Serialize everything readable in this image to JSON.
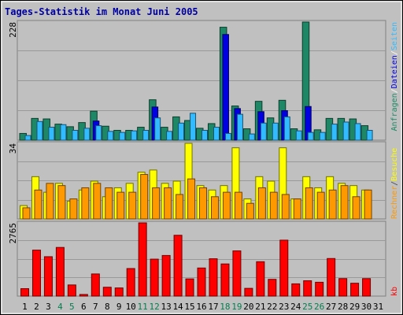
{
  "chart_data": {
    "type": "bar",
    "title": "Tages-Statistik im Monat Juni 2005",
    "categories": [
      "1",
      "2",
      "3",
      "4",
      "5",
      "6",
      "7",
      "8",
      "9",
      "10",
      "11",
      "12",
      "13",
      "14",
      "15",
      "16",
      "17",
      "18",
      "19",
      "20",
      "21",
      "22",
      "23",
      "24",
      "25",
      "26",
      "27",
      "28",
      "29",
      "30",
      "31"
    ],
    "weekend_categories": [
      "4",
      "5",
      "11",
      "12",
      "18",
      "19",
      "25",
      "26"
    ],
    "panels": [
      {
        "name": "requests",
        "ytick": "228",
        "ylim": [
          0,
          228
        ],
        "series": [
          {
            "name": "Anfragen",
            "color": "#1e8866",
            "values": [
              13,
              42,
              41,
              31,
              26,
              34,
              56,
              27,
              19,
              19,
              25,
              78,
              25,
              45,
              38,
              23,
              32,
              218,
              66,
              22,
              75,
              43,
              77,
              22,
              228,
              20,
              42,
              42,
              41,
              28,
              0
            ]
          },
          {
            "name": "Dateien",
            "color": "#0000e0",
            "values": [
              0,
              0,
              0,
              0,
              0,
              0,
              37,
              0,
              0,
              0,
              0,
              64,
              0,
              0,
              0,
              0,
              0,
              204,
              61,
              0,
              55,
              0,
              57,
              0,
              65,
              0,
              0,
              0,
              0,
              0,
              0
            ]
          },
          {
            "name": "Seiten",
            "color": "#33bbff",
            "values": [
              9,
              36,
              25,
              30,
              19,
              23,
              28,
              17,
              15,
              18,
              19,
              43,
              17,
              33,
              52,
              19,
              25,
              13,
              50,
              12,
              33,
              33,
              45,
              18,
              15,
              15,
              31,
              35,
              32,
              19,
              0
            ]
          }
        ],
        "legend_colors": [
          "#1e8866",
          "#ffffff",
          "#0000e0",
          "#ffffff",
          "#33bbff"
        ]
      },
      {
        "name": "visits",
        "ytick": "34",
        "ylim": [
          0,
          34
        ],
        "series": [
          {
            "name": "Besuche",
            "color": "#ffff00",
            "values": [
              6,
              19,
              12,
              16,
              8,
              13,
              17,
              10,
              14,
              16,
              21,
              22,
              16,
              17,
              34,
              15,
              13,
              15,
              32,
              9,
              19,
              17,
              32,
              9,
              19,
              14,
              19,
              16,
              15,
              13,
              0
            ]
          },
          {
            "name": "Rechner",
            "color": "#ff9900",
            "values": [
              5,
              13,
              16,
              15,
              9,
              14,
              16,
              14,
              12,
              12,
              20,
              14,
              14,
              11,
              18,
              14,
              10,
              12,
              12,
              7,
              14,
              12,
              11,
              9,
              14,
              12,
              13,
              15,
              10,
              13,
              0
            ]
          }
        ],
        "legend_colors": [
          "#ff9900",
          "#444444",
          "#ffff00"
        ]
      },
      {
        "name": "traffic",
        "ytick": "2765",
        "ylim": [
          0,
          2765
        ],
        "series": [
          {
            "name": "kb",
            "color": "#ff0000",
            "values": [
              281,
              1736,
              1488,
              1837,
              421,
              62,
              836,
              335,
              308,
              1041,
              2765,
              1395,
              1534,
              2297,
              649,
              1061,
              1410,
              1214,
              1707,
              293,
              1298,
              633,
              2112,
              463,
              580,
              523,
              1419,
              662,
              486,
              661,
              0
            ]
          }
        ],
        "legend_colors": [
          "#ff0000"
        ]
      }
    ],
    "legend": {
      "requests": [
        "Anfragen",
        "/",
        "Dateien",
        "/",
        "Seiten"
      ],
      "visits": [
        "Rechner",
        "/",
        "Besuche"
      ],
      "traffic": [
        "kb"
      ]
    }
  }
}
